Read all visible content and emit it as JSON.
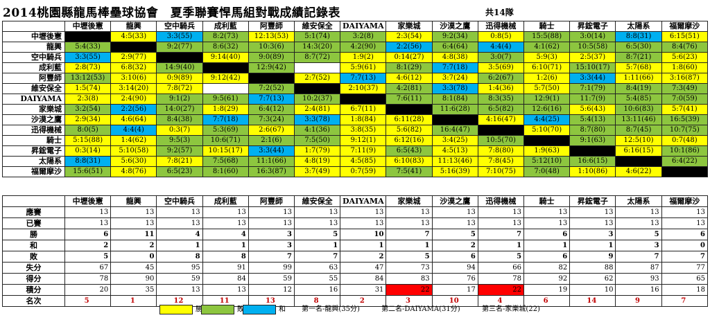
{
  "title": "2014桃園縣龍馬棒壘球協會　夏季聯賽悍馬組對戰成績記錄表",
  "team_count": "共14隊",
  "teams": [
    "中壢後憲",
    "龍興",
    "空中騎兵",
    "成利藍",
    "阿豐師",
    "維安保全",
    "DAIYAMA",
    "家樂城",
    "沙漠之鷹",
    "迅得機械",
    "騎士",
    "昇鋐電子",
    "太陽系",
    "福爾摩沙"
  ],
  "matrix": [
    [
      [
        "",
        "x"
      ],
      [
        "4:5(33)",
        "w"
      ],
      [
        "3:3(55)",
        "t"
      ],
      [
        "8:2(73)",
        "l"
      ],
      [
        "12:13(53)",
        "w"
      ],
      [
        "5:1(74)",
        "l"
      ],
      [
        "3:2(8)",
        "l"
      ],
      [
        "2:3(54)",
        "w"
      ],
      [
        "9:2(34)",
        "l"
      ],
      [
        "0:8(5)",
        "w"
      ],
      [
        "15:5(88)",
        "l"
      ],
      [
        "3:0(14)",
        "l"
      ],
      [
        "8:8(31)",
        "t"
      ],
      [
        "6:15(51)",
        "w"
      ]
    ],
    [
      [
        "5:4(33)",
        "l"
      ],
      [
        "",
        "x"
      ],
      [
        "9:2(77)",
        "l"
      ],
      [
        "8:6(32)",
        "l"
      ],
      [
        "10:3(6)",
        "l"
      ],
      [
        "14:3(20)",
        "l"
      ],
      [
        "4:2(90)",
        "l"
      ],
      [
        "2:2(56)",
        "t"
      ],
      [
        "6:4(64)",
        "l"
      ],
      [
        "4:4(4)",
        "t"
      ],
      [
        "4:1(62)",
        "l"
      ],
      [
        "10:5(58)",
        "l"
      ],
      [
        "6:5(30)",
        "l"
      ],
      [
        "8:4(76)",
        "l"
      ]
    ],
    [
      [
        "3:3(55)",
        "t"
      ],
      [
        "2:9(77)",
        "w"
      ],
      [
        "",
        "x"
      ],
      [
        "9:14(40)",
        "w"
      ],
      [
        "9:0(89)",
        "l"
      ],
      [
        "8:7(72)",
        "l"
      ],
      [
        "1:9(2)",
        "w"
      ],
      [
        "0:14(27)",
        "w"
      ],
      [
        "4:8(38)",
        "w"
      ],
      [
        "3:0(7)",
        "l"
      ],
      [
        "5:9(3)",
        "w"
      ],
      [
        "2:5(37)",
        "w"
      ],
      [
        "8:7(21)",
        "l"
      ],
      [
        "5:6(23)",
        "w"
      ]
    ],
    [
      [
        "2:8(73)",
        "w"
      ],
      [
        "6:8(32)",
        "w"
      ],
      [
        "14:9(40)",
        "l"
      ],
      [
        "",
        "x"
      ],
      [
        "12:9(42)",
        "l"
      ],
      [
        "",
        "b"
      ],
      [
        "5:9(61)",
        "w"
      ],
      [
        "8:1(29)",
        "l"
      ],
      [
        "7:7(18)",
        "t"
      ],
      [
        "3:5(69)",
        "w"
      ],
      [
        "6:10(71)",
        "w"
      ],
      [
        "15:10(17)",
        "l"
      ],
      [
        "5:7(68)",
        "w"
      ],
      [
        "1:8(60)",
        "w"
      ]
    ],
    [
      [
        "13:12(53)",
        "l"
      ],
      [
        "3:10(6)",
        "w"
      ],
      [
        "0:9(89)",
        "w"
      ],
      [
        "9:12(42)",
        "w"
      ],
      [
        "",
        "x"
      ],
      [
        "2:7(52)",
        "w"
      ],
      [
        "7:7(13)",
        "t"
      ],
      [
        "4:6(12)",
        "w"
      ],
      [
        "3:7(24)",
        "w"
      ],
      [
        "6:2(67)",
        "l"
      ],
      [
        "1:2(6)",
        "w"
      ],
      [
        "3:3(44)",
        "t"
      ],
      [
        "1:11(66)",
        "w"
      ],
      [
        "3:16(87)",
        "w"
      ]
    ],
    [
      [
        "1:5(74)",
        "w"
      ],
      [
        "3:14(20)",
        "w"
      ],
      [
        "7:8(72)",
        "w"
      ],
      [
        "",
        "b"
      ],
      [
        "7:2(52)",
        "l"
      ],
      [
        "",
        "x"
      ],
      [
        "2:10(37)",
        "w"
      ],
      [
        "4:2(81)",
        "l"
      ],
      [
        "3:3(78)",
        "t"
      ],
      [
        "1:4(36)",
        "w"
      ],
      [
        "5:7(50)",
        "w"
      ],
      [
        "7:1(79)",
        "l"
      ],
      [
        "8:4(19)",
        "l"
      ],
      [
        "7:3(49)",
        "l"
      ]
    ],
    [
      [
        "2:3(8)",
        "w"
      ],
      [
        "2:4(90)",
        "w"
      ],
      [
        "9:1(2)",
        "l"
      ],
      [
        "9:5(61)",
        "l"
      ],
      [
        "7:7(13)",
        "t"
      ],
      [
        "10:2(37)",
        "l"
      ],
      [
        "",
        "x"
      ],
      [
        "7:6(11)",
        "l"
      ],
      [
        "8:1(84)",
        "l"
      ],
      [
        "8:3(35)",
        "l"
      ],
      [
        "12:9(1)",
        "l"
      ],
      [
        "11:7(9)",
        "l"
      ],
      [
        "5:4(85)",
        "l"
      ],
      [
        "7:0(59)",
        "l"
      ]
    ],
    [
      [
        "3:2(54)",
        "l"
      ],
      [
        "2:2(56)",
        "t"
      ],
      [
        "14:0(27)",
        "l"
      ],
      [
        "1:8(29)",
        "w"
      ],
      [
        "6:4(12)",
        "l"
      ],
      [
        "2:4(81)",
        "w"
      ],
      [
        "6:7(11)",
        "w"
      ],
      [
        "",
        "x"
      ],
      [
        "11:6(28)",
        "l"
      ],
      [
        "6:5(82)",
        "l"
      ],
      [
        "12:6(16)",
        "l"
      ],
      [
        "5:6(43)",
        "w"
      ],
      [
        "10:6(83)",
        "l"
      ],
      [
        "5:7(41)",
        "w"
      ]
    ],
    [
      [
        "2:9(34)",
        "w"
      ],
      [
        "4:6(64)",
        "w"
      ],
      [
        "8:4(38)",
        "l"
      ],
      [
        "7:7(18)",
        "t"
      ],
      [
        "7:3(24)",
        "l"
      ],
      [
        "3:3(78)",
        "t"
      ],
      [
        "1:8(84)",
        "w"
      ],
      [
        "6:11(28)",
        "w"
      ],
      [
        "",
        "x"
      ],
      [
        "4:16(47)",
        "w"
      ],
      [
        "4:4(25)",
        "t"
      ],
      [
        "5:4(13)",
        "l"
      ],
      [
        "13:11(46)",
        "l"
      ],
      [
        "16:5(39)",
        "l"
      ]
    ],
    [
      [
        "8:0(5)",
        "l"
      ],
      [
        "4:4(4)",
        "t"
      ],
      [
        "0:3(7)",
        "w"
      ],
      [
        "5:3(69)",
        "l"
      ],
      [
        "2:6(67)",
        "w"
      ],
      [
        "4:1(36)",
        "l"
      ],
      [
        "3:8(35)",
        "w"
      ],
      [
        "5:6(82)",
        "w"
      ],
      [
        "16:4(47)",
        "l"
      ],
      [
        "",
        "x"
      ],
      [
        "5:10(70)",
        "w"
      ],
      [
        "8:7(80)",
        "l"
      ],
      [
        "8:7(45)",
        "l"
      ],
      [
        "10:7(75)",
        "l"
      ]
    ],
    [
      [
        "5:15(88)",
        "w"
      ],
      [
        "1:4(62)",
        "w"
      ],
      [
        "9:5(3)",
        "l"
      ],
      [
        "10:6(71)",
        "l"
      ],
      [
        "2:1(6)",
        "l"
      ],
      [
        "7:5(50)",
        "l"
      ],
      [
        "9:12(1)",
        "w"
      ],
      [
        "6:12(16)",
        "w"
      ],
      [
        "3:4(25)",
        "w"
      ],
      [
        "10:5(70)",
        "l"
      ],
      [
        "",
        "x"
      ],
      [
        "9:1(63)",
        "l"
      ],
      [
        "12:5(10)",
        "w"
      ],
      [
        "0:7(48)",
        "w"
      ]
    ],
    [
      [
        "0:3(14)",
        "w"
      ],
      [
        "5:10(58)",
        "w"
      ],
      [
        "9:2(57)",
        "l"
      ],
      [
        "10:15(17)",
        "w"
      ],
      [
        "3:3(44)",
        "t"
      ],
      [
        "1:7(79)",
        "w"
      ],
      [
        "7:11(9)",
        "w"
      ],
      [
        "6:5(43)",
        "l"
      ],
      [
        "4:5(13)",
        "w"
      ],
      [
        "7:8(80)",
        "w"
      ],
      [
        "1:9(63)",
        "w"
      ],
      [
        "",
        "x"
      ],
      [
        "6:16(15)",
        "w"
      ],
      [
        "10:1(86)",
        "l"
      ]
    ],
    [
      [
        "8:8(31)",
        "t"
      ],
      [
        "5:6(30)",
        "w"
      ],
      [
        "7:8(21)",
        "w"
      ],
      [
        "7:5(68)",
        "l"
      ],
      [
        "11:1(66)",
        "l"
      ],
      [
        "4:8(19)",
        "w"
      ],
      [
        "4:5(85)",
        "w"
      ],
      [
        "6:10(83)",
        "w"
      ],
      [
        "11:13(46)",
        "w"
      ],
      [
        "7:8(45)",
        "w"
      ],
      [
        "5:12(10)",
        "l"
      ],
      [
        "16:6(15)",
        "l"
      ],
      [
        "",
        "x"
      ],
      [
        "6:4(22)",
        "l"
      ]
    ],
    [
      [
        "15:6(51)",
        "l"
      ],
      [
        "4:8(76)",
        "w"
      ],
      [
        "6:5(23)",
        "l"
      ],
      [
        "8:1(60)",
        "l"
      ],
      [
        "16:3(87)",
        "l"
      ],
      [
        "3:7(49)",
        "w"
      ],
      [
        "0:7(59)",
        "w"
      ],
      [
        "7:5(41)",
        "l"
      ],
      [
        "5:16(39)",
        "w"
      ],
      [
        "7:10(75)",
        "w"
      ],
      [
        "7:0(48)",
        "l"
      ],
      [
        "1:10(86)",
        "w"
      ],
      [
        "4:6(22)",
        "w"
      ],
      [
        "",
        "x"
      ]
    ]
  ],
  "stats": {
    "rows": [
      {
        "label": "應賽",
        "values": [
          13,
          13,
          13,
          13,
          13,
          13,
          13,
          13,
          13,
          13,
          13,
          13,
          13,
          13
        ],
        "bold": false
      },
      {
        "label": "已賽",
        "values": [
          13,
          13,
          13,
          13,
          13,
          13,
          13,
          13,
          13,
          13,
          13,
          13,
          13,
          13
        ],
        "bold": false
      },
      {
        "label": "勝",
        "values": [
          6,
          11,
          4,
          4,
          3,
          5,
          10,
          7,
          5,
          7,
          6,
          3,
          5,
          6
        ],
        "bold": true
      },
      {
        "label": "和",
        "values": [
          2,
          2,
          1,
          1,
          3,
          1,
          1,
          1,
          2,
          1,
          1,
          1,
          3,
          0
        ],
        "bold": true
      },
      {
        "label": "敗",
        "values": [
          5,
          0,
          8,
          8,
          7,
          7,
          2,
          5,
          6,
          5,
          6,
          9,
          7,
          7
        ],
        "bold": true
      },
      {
        "label": "失分",
        "values": [
          67,
          45,
          95,
          91,
          99,
          63,
          47,
          73,
          94,
          66,
          82,
          88,
          87,
          77
        ],
        "bold": false
      },
      {
        "label": "得分",
        "values": [
          78,
          90,
          59,
          84,
          59,
          55,
          84,
          83,
          76,
          78,
          92,
          62,
          93,
          65
        ],
        "bold": false
      },
      {
        "label": "積分",
        "values": [
          20,
          35,
          13,
          13,
          12,
          16,
          31,
          22,
          17,
          22,
          19,
          10,
          16,
          18
        ],
        "bold": false
      },
      {
        "label": "名次",
        "values": [
          5,
          1,
          12,
          11,
          13,
          8,
          2,
          3,
          10,
          4,
          6,
          14,
          9,
          7
        ],
        "bold": true
      }
    ]
  },
  "legend": {
    "win": "勝",
    "loss": "敗",
    "tie": "和",
    "first": "第一名-龍興(35分)",
    "second": "第二名-DAIYAMA(31分)",
    "third": "第三名-家樂城(22)"
  },
  "colors": {
    "win": "#ffff00",
    "loss": "#8dc63f",
    "tie": "#00b0f0",
    "self": "#000000",
    "highlight": "#ff0000"
  }
}
